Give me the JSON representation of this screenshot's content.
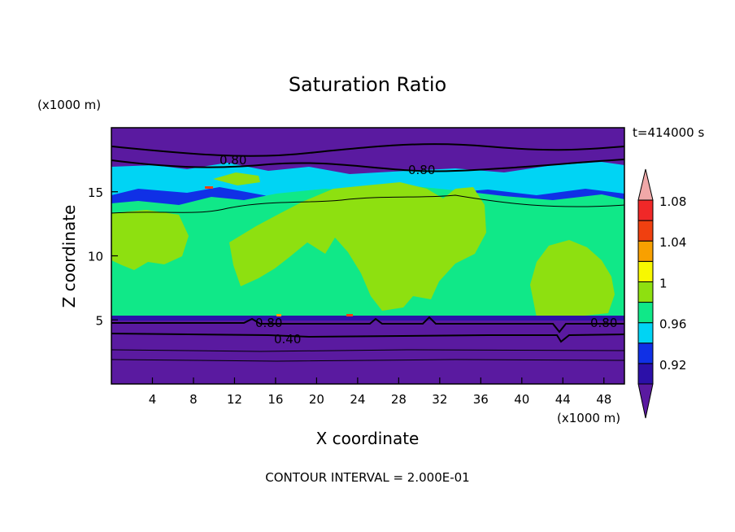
{
  "chart_data": {
    "type": "heatmap",
    "title": "Saturation Ratio",
    "xlabel": "X coordinate",
    "ylabel": "Z coordinate",
    "x_unit": "(x1000 m)",
    "y_unit": "(x1000 m)",
    "time_label": "t=414000 s",
    "footer": "CONTOUR INTERVAL = 2.000E-01",
    "xlim": [
      0,
      50
    ],
    "ylim": [
      0,
      20
    ],
    "x_ticks": [
      4,
      8,
      12,
      16,
      20,
      24,
      28,
      32,
      36,
      40,
      44,
      48
    ],
    "y_ticks": [
      5,
      10,
      15
    ],
    "colorbar": {
      "levels": [
        0.92,
        0.94,
        0.96,
        0.98,
        1.0,
        1.02,
        1.04,
        1.06,
        1.08,
        1.1
      ],
      "labels": [
        "0.92",
        "0.96",
        "1",
        "1.04",
        "1.08"
      ],
      "colors": [
        "#5a1aa0",
        "#2c10a8",
        "#1030e6",
        "#00d4f4",
        "#10e888",
        "#8ee010",
        "#f8f800",
        "#f8a000",
        "#f04010",
        "#f02828",
        "#f0a8a8"
      ]
    },
    "bands": [
      {
        "z_range": [
          0,
          5.2
        ],
        "class": "<0.92"
      },
      {
        "z_range": [
          5.2,
          13.6
        ],
        "class": "0.98-1.02 mixed"
      },
      {
        "z_range": [
          13.6,
          16.0
        ],
        "class": "0.92-1.02 mixed"
      },
      {
        "z_range": [
          16.0,
          20
        ],
        "class": "<0.92"
      }
    ],
    "contour_labels": [
      {
        "text": "0.80",
        "x": 9.0,
        "z": 17.4
      },
      {
        "text": "0.80",
        "x": 30.0,
        "z": 16.7
      },
      {
        "text": "0.80",
        "x": 15.5,
        "z": 4.8
      },
      {
        "text": "0.40",
        "x": 17.0,
        "z": 3.5
      },
      {
        "text": "0.80",
        "x": 47.0,
        "z": 4.8
      }
    ]
  }
}
